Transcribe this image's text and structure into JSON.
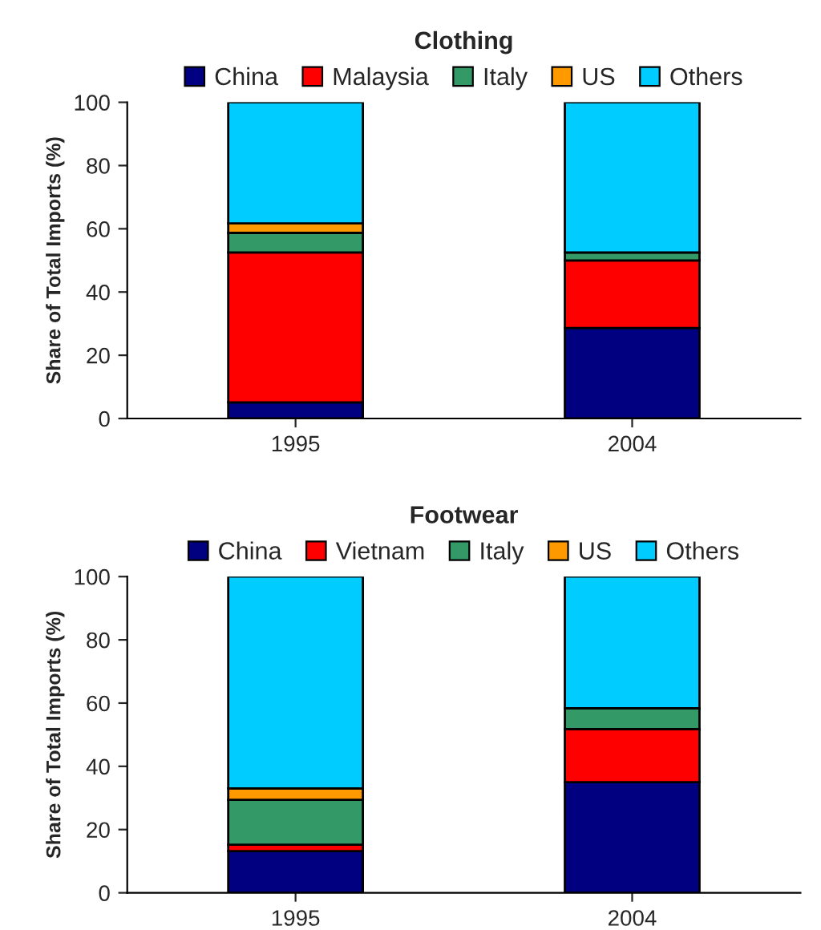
{
  "chart_data": [
    {
      "type": "bar",
      "title": "Clothing",
      "ylabel": "Share of Total Imports (%)",
      "categories": [
        "1995",
        "2004"
      ],
      "stacked": true,
      "legend": "top",
      "ylim": [
        0,
        100
      ],
      "yticks": [
        0,
        20,
        40,
        60,
        80,
        100
      ],
      "grid": false,
      "series": [
        {
          "name": "China",
          "color": "#000080",
          "values": [
            5.1,
            28.6
          ]
        },
        {
          "name": "Malaysia",
          "color": "#ff0000",
          "values": [
            47.4,
            21.4
          ]
        },
        {
          "name": "Italy",
          "color": "#339966",
          "values": [
            6.2,
            2.5
          ]
        },
        {
          "name": "US",
          "color": "#ff9900",
          "values": [
            3.0,
            0
          ]
        },
        {
          "name": "Others",
          "color": "#00ccff",
          "values": [
            38.3,
            47.5
          ]
        }
      ]
    },
    {
      "type": "bar",
      "title": "Footwear",
      "ylabel": "Share of Total Imports (%)",
      "categories": [
        "1995",
        "2004"
      ],
      "stacked": true,
      "legend": "top",
      "ylim": [
        0,
        100
      ],
      "yticks": [
        0,
        20,
        40,
        60,
        80,
        100
      ],
      "grid": false,
      "series": [
        {
          "name": "China",
          "color": "#000080",
          "values": [
            13.2,
            35.0
          ]
        },
        {
          "name": "Vietnam",
          "color": "#ff0000",
          "values": [
            2.0,
            16.8
          ]
        },
        {
          "name": "Italy",
          "color": "#339966",
          "values": [
            14.2,
            6.6
          ]
        },
        {
          "name": "US",
          "color": "#ff9900",
          "values": [
            3.6,
            0
          ]
        },
        {
          "name": "Others",
          "color": "#00ccff",
          "values": [
            67.0,
            41.6
          ]
        }
      ]
    }
  ]
}
